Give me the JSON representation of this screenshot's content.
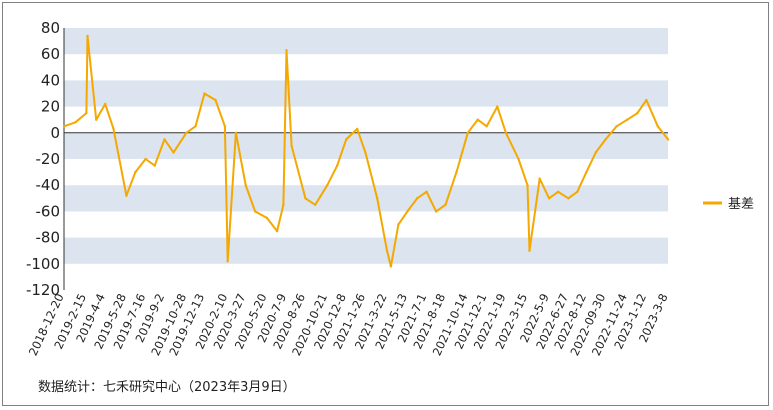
{
  "chart_data": {
    "type": "line",
    "title": "",
    "xlabel": "",
    "ylabel": "",
    "ylim": [
      -120,
      80
    ],
    "yticks": [
      80,
      60,
      40,
      20,
      0,
      -20,
      -40,
      -60,
      -80,
      -100,
      -120
    ],
    "x_tick_labels": [
      "2018-12-20",
      "2019-2-15",
      "2019-4-4",
      "2019-5-28",
      "2019-7-16",
      "2019-9-2",
      "2019-10-28",
      "2019-12-13",
      "2020-2-10",
      "2020-3-27",
      "2020-5-20",
      "2020-7-9",
      "2020-8-26",
      "2020-10-21",
      "2020-12-8",
      "2021-1-26",
      "2021-3-22",
      "2021-5-13",
      "2021-7-1",
      "2021-8-18",
      "2021-10-14",
      "2021-12-1",
      "2022-1-19",
      "2022-3-15",
      "2022-5-9",
      "2022-6-27",
      "2022-8-12",
      "2022-09-30",
      "2022-11-24",
      "2023-1-12",
      "2023-3-8"
    ],
    "grid": "alternating horizontal bands",
    "legend_position": "right",
    "series": [
      {
        "name": "基差",
        "color": "#f5a800",
        "x": [
          "2018-12-20",
          "2019-1-18",
          "2019-2-15",
          "2019-2-18",
          "2019-3-12",
          "2019-4-4",
          "2019-4-25",
          "2019-5-28",
          "2019-6-20",
          "2019-7-16",
          "2019-8-8",
          "2019-9-2",
          "2019-9-25",
          "2019-10-28",
          "2019-11-20",
          "2019-12-13",
          "2020-1-10",
          "2020-2-3",
          "2020-2-10",
          "2020-3-2",
          "2020-3-27",
          "2020-4-20",
          "2020-5-20",
          "2020-6-15",
          "2020-7-1",
          "2020-7-9",
          "2020-7-22",
          "2020-8-26",
          "2020-9-20",
          "2020-10-21",
          "2020-11-15",
          "2020-12-8",
          "2021-1-5",
          "2021-1-26",
          "2021-2-25",
          "2021-3-22",
          "2021-4-1",
          "2021-4-20",
          "2021-5-13",
          "2021-6-7",
          "2021-7-1",
          "2021-7-25",
          "2021-8-18",
          "2021-9-15",
          "2021-10-14",
          "2021-11-8",
          "2021-12-1",
          "2021-12-28",
          "2022-1-19",
          "2022-2-20",
          "2022-3-15",
          "2022-3-20",
          "2022-4-15",
          "2022-5-9",
          "2022-6-1",
          "2022-6-27",
          "2022-7-20",
          "2022-8-12",
          "2022-9-5",
          "2022-09-30",
          "2022-10-28",
          "2022-11-24",
          "2022-12-20",
          "2023-1-12",
          "2023-2-10",
          "2023-3-8"
        ],
        "values": [
          5,
          8,
          15,
          74,
          10,
          22,
          3,
          -48,
          -30,
          -20,
          -25,
          -5,
          -15,
          0,
          5,
          30,
          25,
          5,
          -98,
          0,
          -40,
          -60,
          -65,
          -75,
          -55,
          63,
          -10,
          -50,
          -55,
          -40,
          -25,
          -5,
          3,
          -15,
          -50,
          -90,
          -102,
          -70,
          -60,
          -50,
          -45,
          -60,
          -55,
          -30,
          0,
          10,
          5,
          20,
          0,
          -20,
          -40,
          -90,
          -35,
          -50,
          -45,
          -50,
          -45,
          -30,
          -15,
          -5,
          5,
          10,
          15,
          25,
          5,
          -5
        ]
      }
    ]
  },
  "source_text": "数据统计：七禾研究中心（2023年3月9日）"
}
